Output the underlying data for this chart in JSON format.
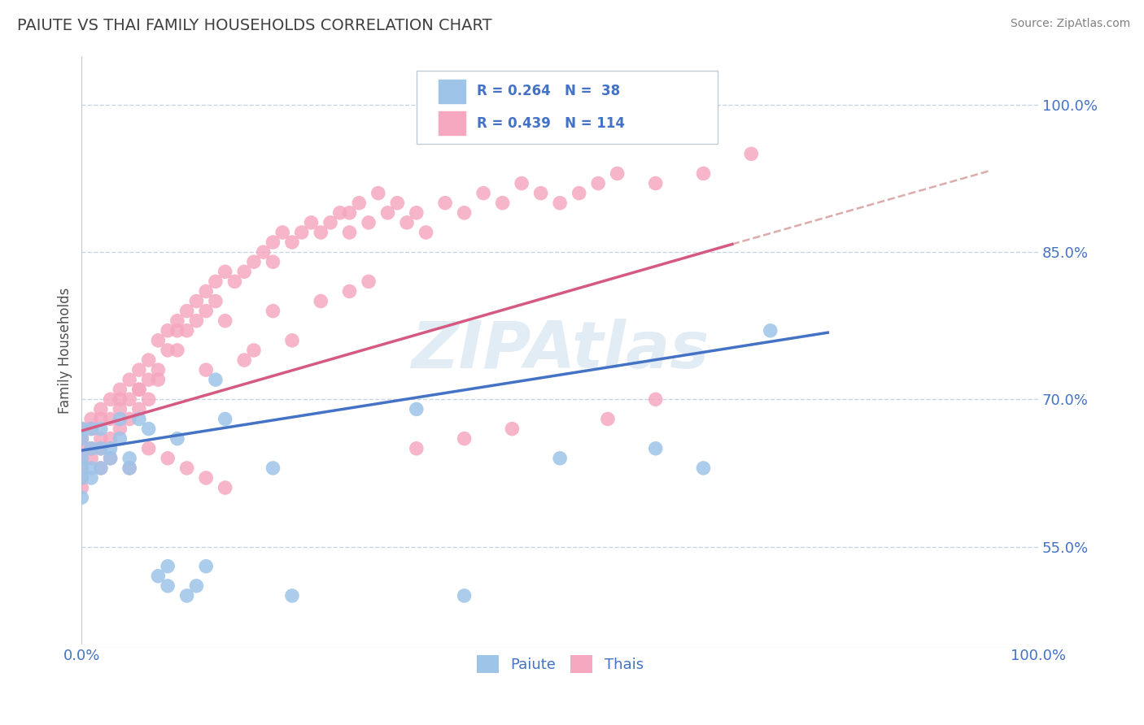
{
  "title": "PAIUTE VS THAI FAMILY HOUSEHOLDS CORRELATION CHART",
  "source": "Source: ZipAtlas.com",
  "ylabel": "Family Households",
  "xlim": [
    0,
    1.0
  ],
  "ylim": [
    0.45,
    1.05
  ],
  "x_tick_labels": [
    "0.0%",
    "100.0%"
  ],
  "y_tick_labels": [
    "55.0%",
    "70.0%",
    "85.0%",
    "100.0%"
  ],
  "y_tick_positions": [
    0.55,
    0.7,
    0.85,
    1.0
  ],
  "paiute_color": "#9ec4e8",
  "thai_color": "#f5a8c0",
  "paiute_line_color": "#4472c4",
  "thai_line_color": "#d45a82",
  "dashed_line_color": "#d09090",
  "watermark_color": "#8ab4d8",
  "title_color": "#404040",
  "axis_label_color": "#4472c4",
  "grid_color": "#c8d4e8",
  "paiute_x": [
    0.0,
    0.0,
    0.0,
    0.0,
    0.0,
    0.0,
    0.01,
    0.01,
    0.01,
    0.01,
    0.02,
    0.02,
    0.02,
    0.03,
    0.03,
    0.04,
    0.04,
    0.05,
    0.05,
    0.06,
    0.07,
    0.08,
    0.09,
    0.09,
    0.1,
    0.11,
    0.12,
    0.13,
    0.14,
    0.15,
    0.2,
    0.22,
    0.35,
    0.4,
    0.5,
    0.6,
    0.65,
    0.72
  ],
  "paiute_y": [
    0.66,
    0.67,
    0.64,
    0.63,
    0.62,
    0.6,
    0.67,
    0.65,
    0.63,
    0.62,
    0.67,
    0.65,
    0.63,
    0.65,
    0.64,
    0.68,
    0.66,
    0.64,
    0.63,
    0.68,
    0.67,
    0.52,
    0.53,
    0.51,
    0.66,
    0.5,
    0.51,
    0.53,
    0.72,
    0.68,
    0.63,
    0.5,
    0.69,
    0.5,
    0.64,
    0.65,
    0.63,
    0.77
  ],
  "thai_x": [
    0.0,
    0.0,
    0.0,
    0.0,
    0.0,
    0.0,
    0.01,
    0.01,
    0.01,
    0.02,
    0.02,
    0.02,
    0.02,
    0.03,
    0.03,
    0.03,
    0.04,
    0.04,
    0.04,
    0.05,
    0.05,
    0.05,
    0.06,
    0.06,
    0.06,
    0.07,
    0.07,
    0.07,
    0.08,
    0.08,
    0.09,
    0.09,
    0.1,
    0.1,
    0.11,
    0.11,
    0.12,
    0.12,
    0.13,
    0.13,
    0.14,
    0.14,
    0.15,
    0.16,
    0.17,
    0.18,
    0.19,
    0.2,
    0.2,
    0.21,
    0.22,
    0.23,
    0.24,
    0.25,
    0.26,
    0.27,
    0.28,
    0.28,
    0.29,
    0.3,
    0.31,
    0.32,
    0.33,
    0.34,
    0.35,
    0.36,
    0.38,
    0.4,
    0.42,
    0.44,
    0.46,
    0.48,
    0.5,
    0.52,
    0.54,
    0.56,
    0.6,
    0.65,
    0.7,
    0.1,
    0.15,
    0.2,
    0.25,
    0.28,
    0.3,
    0.18,
    0.22,
    0.35,
    0.4,
    0.45,
    0.55,
    0.6,
    0.13,
    0.17,
    0.08,
    0.06,
    0.04,
    0.02,
    0.01,
    0.0,
    0.0,
    0.01,
    0.03,
    0.05,
    0.07,
    0.09,
    0.11,
    0.13,
    0.15
  ],
  "thai_y": [
    0.66,
    0.65,
    0.64,
    0.63,
    0.62,
    0.61,
    0.67,
    0.65,
    0.64,
    0.68,
    0.66,
    0.65,
    0.63,
    0.7,
    0.68,
    0.66,
    0.71,
    0.69,
    0.67,
    0.72,
    0.7,
    0.68,
    0.73,
    0.71,
    0.69,
    0.74,
    0.72,
    0.7,
    0.76,
    0.73,
    0.77,
    0.75,
    0.78,
    0.75,
    0.79,
    0.77,
    0.8,
    0.78,
    0.81,
    0.79,
    0.82,
    0.8,
    0.83,
    0.82,
    0.83,
    0.84,
    0.85,
    0.86,
    0.84,
    0.87,
    0.86,
    0.87,
    0.88,
    0.87,
    0.88,
    0.89,
    0.89,
    0.87,
    0.9,
    0.88,
    0.91,
    0.89,
    0.9,
    0.88,
    0.89,
    0.87,
    0.9,
    0.89,
    0.91,
    0.9,
    0.92,
    0.91,
    0.9,
    0.91,
    0.92,
    0.93,
    0.92,
    0.93,
    0.95,
    0.77,
    0.78,
    0.79,
    0.8,
    0.81,
    0.82,
    0.75,
    0.76,
    0.65,
    0.66,
    0.67,
    0.68,
    0.7,
    0.73,
    0.74,
    0.72,
    0.71,
    0.7,
    0.69,
    0.68,
    0.67,
    0.66,
    0.65,
    0.64,
    0.63,
    0.65,
    0.64,
    0.63,
    0.62,
    0.61
  ],
  "paiute_line_x": [
    0.0,
    0.78
  ],
  "paiute_line_y": [
    0.648,
    0.768
  ],
  "thai_line_x": [
    0.0,
    0.68
  ],
  "thai_line_y": [
    0.668,
    0.858
  ],
  "dashed_line_x": [
    0.68,
    0.95
  ],
  "dashed_line_y": [
    0.858,
    0.933
  ]
}
